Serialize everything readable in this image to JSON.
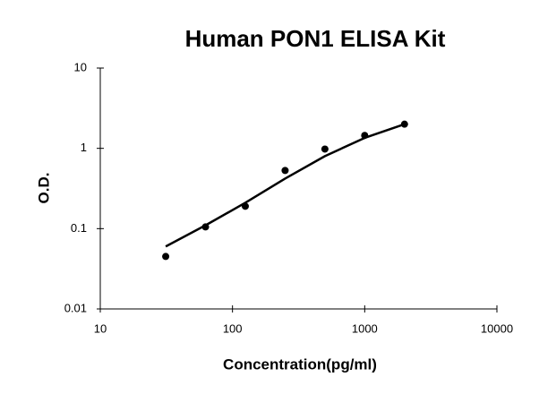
{
  "chart_data": {
    "type": "scatter",
    "title": "Human PON1 ELISA Kit",
    "x_label": "Concentration(pg/ml)",
    "y_label": "O.D.",
    "x": [
      31.25,
      62.5,
      125,
      250,
      500,
      1000,
      2000
    ],
    "series": [
      {
        "mode": "markers",
        "color": "#000000",
        "values": [
          0.045,
          0.105,
          0.19,
          0.53,
          0.98,
          1.45,
          2.0
        ]
      },
      {
        "mode": "line",
        "color": "#000000",
        "values": [
          0.06,
          0.11,
          0.21,
          0.42,
          0.8,
          1.35,
          2.0
        ]
      }
    ],
    "xscale": "log",
    "yscale": "log",
    "xlim": [
      10,
      10000
    ],
    "ylim": [
      0.01,
      10
    ],
    "xticks": [
      10,
      100,
      1000,
      10000
    ],
    "yticks": [
      0.01,
      0.1,
      1,
      10
    ],
    "grid": false
  }
}
